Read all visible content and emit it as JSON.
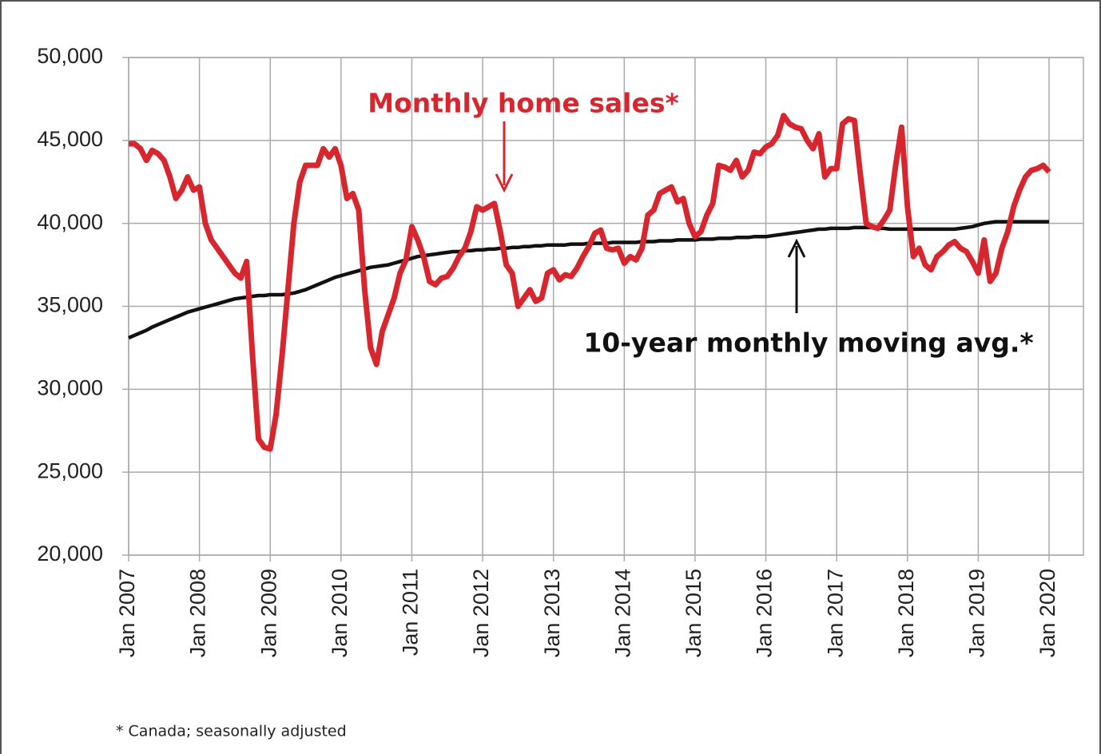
{
  "chart_data": {
    "type": "line",
    "grid": true,
    "ylim": [
      20000,
      50000
    ],
    "yticks": [
      {
        "value": 20000,
        "label": "20,000"
      },
      {
        "value": 25000,
        "label": "25,000"
      },
      {
        "value": 30000,
        "label": "30,000"
      },
      {
        "value": 35000,
        "label": "35,000"
      },
      {
        "value": 40000,
        "label": "40,000"
      },
      {
        "value": 45000,
        "label": "45,000"
      },
      {
        "value": 50000,
        "label": "50,000"
      }
    ],
    "categories": [
      "Jan 2007",
      null,
      null,
      null,
      null,
      null,
      null,
      null,
      null,
      null,
      null,
      null,
      "Jan 2008",
      null,
      null,
      null,
      null,
      null,
      null,
      null,
      null,
      null,
      null,
      null,
      "Jan 2009",
      null,
      null,
      null,
      null,
      null,
      null,
      null,
      null,
      null,
      null,
      null,
      "Jan 2010",
      null,
      null,
      null,
      null,
      null,
      null,
      null,
      null,
      null,
      null,
      null,
      "Jan 2011",
      null,
      null,
      null,
      null,
      null,
      null,
      null,
      null,
      null,
      null,
      null,
      "Jan 2012",
      null,
      null,
      null,
      null,
      null,
      null,
      null,
      null,
      null,
      null,
      null,
      "Jan 2013",
      null,
      null,
      null,
      null,
      null,
      null,
      null,
      null,
      null,
      null,
      null,
      "Jan 2014",
      null,
      null,
      null,
      null,
      null,
      null,
      null,
      null,
      null,
      null,
      null,
      "Jan 2015",
      null,
      null,
      null,
      null,
      null,
      null,
      null,
      null,
      null,
      null,
      null,
      "Jan 2016",
      null,
      null,
      null,
      null,
      null,
      null,
      null,
      null,
      null,
      null,
      null,
      "Jan 2017",
      null,
      null,
      null,
      null,
      null,
      null,
      null,
      null,
      null,
      null,
      null,
      "Jan 2018",
      null,
      null,
      null,
      null,
      null,
      null,
      null,
      null,
      null,
      null,
      null,
      "Jan 2019",
      null,
      null,
      null,
      null,
      null,
      null,
      null,
      null,
      null,
      null,
      null,
      "Jan 2020"
    ],
    "series": [
      {
        "name": "Monthly home sales*",
        "color": "#d7262e",
        "values": [
          44800,
          44800,
          44500,
          43800,
          44400,
          44200,
          43800,
          42800,
          41500,
          42000,
          42800,
          42000,
          42200,
          40000,
          39000,
          38500,
          38000,
          37500,
          37000,
          36700,
          37700,
          32000,
          27000,
          26500,
          26400,
          28500,
          32000,
          36000,
          40000,
          42500,
          43500,
          43500,
          43500,
          44500,
          44000,
          44500,
          43500,
          41500,
          41800,
          40800,
          36000,
          32500,
          31500,
          33500,
          34500,
          35500,
          37000,
          37800,
          39800,
          39000,
          38000,
          36500,
          36300,
          36700,
          36800,
          37300,
          38000,
          38500,
          39500,
          41000,
          40800,
          41000,
          41200,
          39500,
          37500,
          37000,
          35000,
          35500,
          36000,
          35300,
          35500,
          37000,
          37200,
          36600,
          36900,
          36800,
          37300,
          38000,
          38600,
          39400,
          39600,
          38500,
          38400,
          38500,
          37600,
          38000,
          37800,
          38500,
          40500,
          40800,
          41800,
          42000,
          42200,
          41300,
          41500,
          40000,
          39200,
          39500,
          40500,
          41200,
          43500,
          43400,
          43200,
          43800,
          42800,
          43200,
          44300,
          44200,
          44600,
          44800,
          45300,
          46500,
          46000,
          45800,
          45700,
          45000,
          44500,
          45400,
          42800,
          43300,
          43300,
          46000,
          46300,
          46200,
          43000,
          40000,
          39800,
          39700,
          40200,
          40800,
          43500,
          45800,
          41000,
          38000,
          38500,
          37500,
          37200,
          38000,
          38300,
          38700,
          38900,
          38500,
          38300,
          37700,
          37000,
          39000,
          36500,
          37000,
          38500,
          39500,
          41000,
          42000,
          42800,
          43200,
          43300,
          43500,
          43100
        ]
      },
      {
        "name": "10-year monthly moving avg.*",
        "color": "#111111",
        "values": [
          33100,
          33250,
          33400,
          33550,
          33750,
          33900,
          34050,
          34200,
          34350,
          34500,
          34650,
          34750,
          34850,
          34950,
          35050,
          35150,
          35250,
          35350,
          35450,
          35500,
          35550,
          35600,
          35650,
          35650,
          35700,
          35700,
          35700,
          35750,
          35800,
          35900,
          36000,
          36150,
          36300,
          36450,
          36600,
          36750,
          36850,
          36950,
          37050,
          37150,
          37250,
          37350,
          37400,
          37450,
          37500,
          37600,
          37700,
          37800,
          37900,
          38000,
          38050,
          38100,
          38150,
          38200,
          38250,
          38300,
          38300,
          38350,
          38350,
          38400,
          38400,
          38450,
          38450,
          38500,
          38500,
          38550,
          38550,
          38600,
          38600,
          38650,
          38650,
          38700,
          38700,
          38700,
          38700,
          38750,
          38750,
          38750,
          38800,
          38800,
          38800,
          38800,
          38850,
          38850,
          38850,
          38850,
          38850,
          38900,
          38900,
          38900,
          38950,
          38950,
          38950,
          39000,
          39000,
          39000,
          39000,
          39050,
          39050,
          39050,
          39100,
          39100,
          39100,
          39150,
          39150,
          39150,
          39200,
          39200,
          39200,
          39250,
          39300,
          39350,
          39400,
          39450,
          39500,
          39550,
          39600,
          39650,
          39650,
          39700,
          39700,
          39700,
          39700,
          39750,
          39750,
          39750,
          39750,
          39700,
          39700,
          39650,
          39650,
          39650,
          39650,
          39650,
          39650,
          39650,
          39650,
          39650,
          39650,
          39650,
          39650,
          39700,
          39750,
          39800,
          39900,
          40000,
          40050,
          40100,
          40100,
          40100,
          40100,
          40100,
          40100,
          40100,
          40100,
          40100,
          40100
        ]
      }
    ],
    "note": "* Canada; seasonally adjusted"
  }
}
